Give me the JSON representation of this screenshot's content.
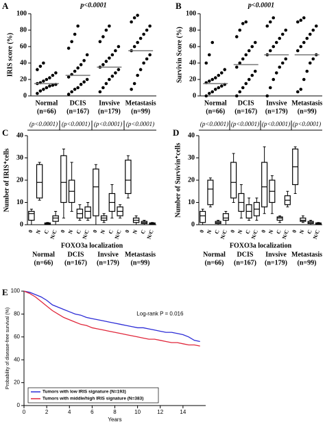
{
  "chart_data": [
    {
      "type": "strip",
      "panel": "A",
      "annotation": "p<0.0001",
      "ylabel": "IRIS score (%)",
      "categories": [
        "Normal",
        "DCIS",
        "Invsive",
        "Metastasis"
      ],
      "category_counts": [
        "(n=66)",
        "(n=167)",
        "(n=179)",
        "(n=99)"
      ],
      "points": [
        [
          3,
          6,
          8,
          10,
          12,
          13,
          14,
          15,
          16,
          18,
          20,
          22,
          25,
          28,
          32,
          36,
          40
        ],
        [
          2,
          5,
          8,
          10,
          14,
          17,
          20,
          23,
          26,
          30,
          34,
          38,
          43,
          50,
          58,
          66,
          75,
          85
        ],
        [
          5,
          10,
          15,
          20,
          24,
          28,
          32,
          35,
          38,
          42,
          46,
          50,
          55,
          60,
          66,
          72,
          80,
          85
        ],
        [
          8,
          15,
          25,
          32,
          40,
          45,
          50,
          55,
          60,
          65,
          70,
          75,
          80,
          85,
          90,
          95,
          98
        ]
      ],
      "means": [
        15,
        25,
        35,
        55
      ],
      "color": "#000000",
      "ylim": [
        0,
        100
      ],
      "yticks": [
        0,
        20,
        40,
        60,
        80,
        100
      ]
    },
    {
      "type": "strip",
      "panel": "B",
      "annotation": "p<0.0001",
      "ylabel": "Survivin Score (%)",
      "categories": [
        "Normal",
        "DCIS",
        "Invsive",
        "Metastasis"
      ],
      "category_counts": [
        "(n=66)",
        "(n=167)",
        "(n=179)",
        "(n=99)"
      ],
      "points": [
        [
          0,
          3,
          5,
          8,
          10,
          12,
          14,
          16,
          18,
          20,
          22,
          25,
          28,
          32,
          40,
          50,
          65
        ],
        [
          0,
          5,
          10,
          15,
          20,
          25,
          30,
          35,
          40,
          45,
          50,
          55,
          60,
          65,
          72,
          80,
          88,
          90
        ],
        [
          0,
          10,
          20,
          28,
          35,
          40,
          45,
          50,
          55,
          60,
          65,
          70,
          75,
          80,
          85,
          90,
          95
        ],
        [
          5,
          8,
          20,
          30,
          40,
          45,
          50,
          55,
          60,
          65,
          70,
          75,
          80,
          85,
          90,
          92,
          95
        ]
      ],
      "means": [
        15,
        38,
        50,
        50
      ],
      "color": "#000000",
      "ylim": [
        0,
        100
      ],
      "yticks": [
        0,
        20,
        40,
        60,
        80,
        100
      ]
    },
    {
      "type": "box",
      "panel": "C",
      "ylabel": "Number of IRIS⁺cells",
      "xlabel": "FOXO3a localization",
      "categories": [
        "Normal",
        "DCIS",
        "Invsive",
        "Metastasis"
      ],
      "category_counts": [
        "(n=66)",
        "(n=167)",
        "(n=179)",
        "(n=99)"
      ],
      "group_annotations": [
        "(p<0.0001)",
        "(p<0.0001)",
        "(p<0.0001)",
        "(p<0.0001)"
      ],
      "box_labels": [
        "0",
        "N",
        "C",
        "N/C"
      ],
      "boxes": [
        [
          {
            "min": 0,
            "q1": 2,
            "median": 5,
            "q3": 6,
            "max": 7
          },
          {
            "min": 11,
            "q1": 12,
            "median": 19,
            "q3": 27,
            "max": 28
          },
          {
            "min": 0,
            "q1": 0.3,
            "median": 0.5,
            "q3": 0.8,
            "max": 1
          },
          {
            "min": 0,
            "q1": 1.5,
            "median": 3,
            "q3": 4,
            "max": 6
          }
        ],
        [
          {
            "min": 3,
            "q1": 10,
            "median": 19,
            "q3": 31,
            "max": 34
          },
          {
            "min": 6,
            "q1": 10,
            "median": 15,
            "q3": 20,
            "max": 28
          },
          {
            "min": 2,
            "q1": 3,
            "median": 5,
            "q3": 7,
            "max": 9
          },
          {
            "min": 2,
            "q1": 3,
            "median": 6,
            "q3": 8,
            "max": 10
          }
        ],
        [
          {
            "min": 0,
            "q1": 4,
            "median": 17,
            "q3": 25,
            "max": 27
          },
          {
            "min": 1,
            "q1": 2,
            "median": 3,
            "q3": 4,
            "max": 5
          },
          {
            "min": 3,
            "q1": 6,
            "median": 10,
            "q3": 14,
            "max": 18
          },
          {
            "min": 3,
            "q1": 4,
            "median": 6,
            "q3": 8,
            "max": 9
          }
        ],
        [
          {
            "min": 12,
            "q1": 14,
            "median": 20,
            "q3": 29,
            "max": 31
          },
          {
            "min": 0,
            "q1": 1,
            "median": 2,
            "q3": 3,
            "max": 4
          },
          {
            "min": 0,
            "q1": 0.5,
            "median": 1,
            "q3": 1.5,
            "max": 2
          },
          {
            "min": 0,
            "q1": 0.2,
            "median": 0.5,
            "q3": 0.8,
            "max": 1
          }
        ]
      ],
      "ylim": [
        0,
        40
      ],
      "yticks": [
        0,
        10,
        20,
        30,
        40
      ]
    },
    {
      "type": "box",
      "panel": "D",
      "ylabel": "Number of Survivin⁺cells",
      "xlabel": "FOXO3a localization",
      "categories": [
        "Normal",
        "DCIS",
        "Invsive",
        "Metastasis"
      ],
      "category_counts": [
        "(n=66)",
        "(n=167)",
        "(n=179)",
        "(n=99)"
      ],
      "group_annotations": [
        "(p<0.0001)",
        "(p<0.0001)",
        "(p<0.0001)",
        "(p<0.0001)"
      ],
      "box_labels": [
        "0",
        "N",
        "C",
        "N/C"
      ],
      "boxes": [
        [
          {
            "min": 0,
            "q1": 1,
            "median": 4,
            "q3": 6,
            "max": 7
          },
          {
            "min": 8,
            "q1": 9,
            "median": 16,
            "q3": 20,
            "max": 21
          },
          {
            "min": 0,
            "q1": 0.5,
            "median": 1,
            "q3": 1.5,
            "max": 2
          },
          {
            "min": 0,
            "q1": 2,
            "median": 3,
            "q3": 5,
            "max": 6
          }
        ],
        [
          {
            "min": 10,
            "q1": 12,
            "median": 19,
            "q3": 28,
            "max": 32
          },
          {
            "min": 3,
            "q1": 6,
            "median": 10,
            "q3": 14,
            "max": 18
          },
          {
            "min": 2,
            "q1": 3,
            "median": 6,
            "q3": 9,
            "max": 12
          },
          {
            "min": 2,
            "q1": 4,
            "median": 7,
            "q3": 10,
            "max": 12
          }
        ],
        [
          {
            "min": 5,
            "q1": 8,
            "median": 17,
            "q3": 28,
            "max": 35
          },
          {
            "min": 5,
            "q1": 10,
            "median": 15,
            "q3": 20,
            "max": 22
          },
          {
            "min": 1,
            "q1": 2,
            "median": 3,
            "q3": 3.5,
            "max": 4
          },
          {
            "min": 8,
            "q1": 9,
            "median": 11,
            "q3": 13,
            "max": 15
          }
        ],
        [
          {
            "min": 14,
            "q1": 18,
            "median": 26,
            "q3": 34,
            "max": 35
          },
          {
            "min": 1,
            "q1": 1.5,
            "median": 2,
            "q3": 3,
            "max": 4
          },
          {
            "min": 0,
            "q1": 0.5,
            "median": 1,
            "q3": 1.5,
            "max": 2
          },
          {
            "min": 0,
            "q1": 0.2,
            "median": 0.5,
            "q3": 0.8,
            "max": 1
          }
        ]
      ],
      "ylim": [
        0,
        40
      ],
      "yticks": [
        0,
        10,
        20,
        30,
        40
      ]
    },
    {
      "type": "line",
      "panel": "E",
      "annotation": "Log-rank P = 0.016",
      "xlabel": "Years",
      "ylabel": "Probability of disease-free survival (%)",
      "x": [
        0,
        0.5,
        1,
        1.5,
        2,
        2.5,
        3,
        3.5,
        4,
        4.5,
        5,
        5.5,
        6,
        6.5,
        7,
        7.5,
        8,
        8.5,
        9,
        9.5,
        10,
        10.5,
        11,
        11.5,
        12,
        12.5,
        13,
        13.5,
        14,
        14.5,
        15,
        15.5
      ],
      "series": [
        {
          "name": "Tumors with low IRIS signature (N=193)",
          "color": "#2b2bd6",
          "values": [
            100,
            99,
            97,
            95,
            92,
            88,
            86,
            84,
            82,
            80,
            79,
            77,
            76,
            75,
            74,
            73,
            72,
            71,
            70,
            69,
            68,
            68,
            67,
            66,
            65,
            64,
            64,
            63,
            62,
            60,
            57,
            56
          ]
        },
        {
          "name": "Tumors with middle/high IRIS signature (N=383)",
          "color": "#e0263a",
          "values": [
            100,
            98,
            95,
            91,
            87,
            83,
            80,
            77,
            75,
            73,
            71,
            70,
            68,
            67,
            66,
            65,
            64,
            63,
            62,
            61,
            60,
            59,
            58,
            58,
            57,
            56,
            55,
            55,
            54,
            53,
            53,
            52
          ]
        }
      ],
      "legend": "bottom-left",
      "xlim": [
        0,
        16
      ],
      "xticks": [
        0,
        2,
        4,
        6,
        8,
        10,
        12,
        14
      ],
      "ylim": [
        0,
        100
      ],
      "yticks": [
        0,
        20,
        40,
        60,
        80,
        100
      ]
    }
  ]
}
